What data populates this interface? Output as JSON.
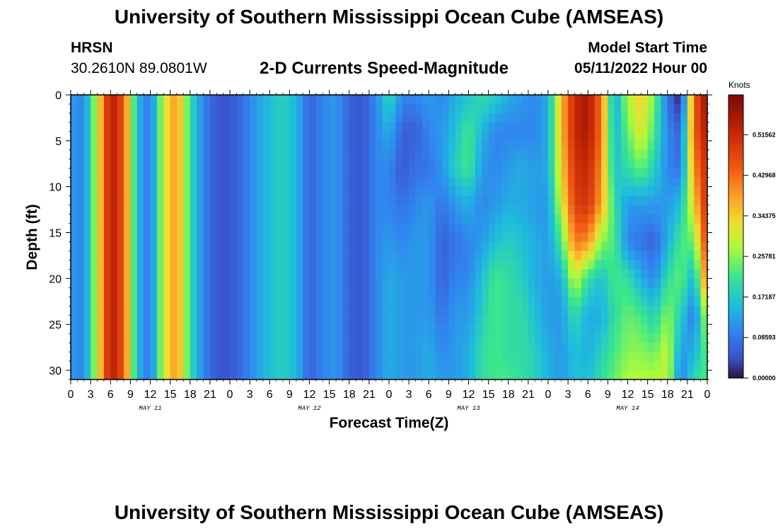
{
  "header": {
    "title": "University of Southern Mississippi Ocean Cube (AMSEAS)",
    "station": "HRSN",
    "coords": "30.2610N  89.0801W",
    "subtitle": "2-D Currents Speed-Magnitude",
    "start_label": "Model Start Time",
    "start_value": "05/11/2022 Hour 00"
  },
  "footer": {
    "title_repeat": "University of Southern Mississippi Ocean Cube (AMSEAS)"
  },
  "chart_data": {
    "type": "heatmap",
    "xlabel": "Forecast Time(Z)",
    "ylabel": "Depth (ft)",
    "units": "Knots",
    "x_hours_range": [
      0,
      96
    ],
    "x_tick_labels": [
      "0",
      "3",
      "6",
      "9",
      "12",
      "15",
      "18",
      "21",
      "0",
      "3",
      "6",
      "9",
      "12",
      "15",
      "18",
      "21",
      "0",
      "3",
      "6",
      "9",
      "12",
      "15",
      "18",
      "21",
      "0",
      "3",
      "6",
      "9",
      "12",
      "15",
      "18",
      "21",
      "0"
    ],
    "day_labels": [
      "MAY 11",
      "MAY 12",
      "MAY 13",
      "MAY 14"
    ],
    "y_range": [
      0,
      31
    ],
    "y_tick_labels": [
      "0",
      "5",
      "10",
      "15",
      "20",
      "25",
      "30"
    ],
    "colorbar": {
      "range": [
        0,
        0.6
      ],
      "tick_values": [
        0.0,
        0.0859,
        0.1718,
        0.2578,
        0.3437,
        0.4296,
        0.5156
      ],
      "tick_labels": [
        "0.00000",
        "0.08593",
        "0.17187",
        "0.25781",
        "0.34375",
        "0.42968",
        "0.51562"
      ]
    },
    "depth_levels_ft": [
      0,
      4,
      8,
      12,
      16,
      20,
      24,
      28,
      31
    ],
    "hours": [
      0,
      2,
      4,
      6,
      8,
      10,
      12,
      14,
      16,
      18,
      20,
      22,
      24,
      26,
      28,
      30,
      32,
      34,
      36,
      38,
      40,
      42,
      44,
      46,
      48,
      50,
      52,
      54,
      56,
      58,
      60,
      62,
      64,
      66,
      68,
      70,
      72,
      74,
      76,
      78,
      80,
      82,
      84,
      86,
      88,
      90,
      92,
      94,
      96
    ],
    "speed_knots": [
      [
        0.12,
        0.1,
        0.3,
        0.55,
        0.45,
        0.15,
        0.08,
        0.3,
        0.4,
        0.2,
        0.1,
        0.05,
        0.05,
        0.08,
        0.12,
        0.16,
        0.18,
        0.15,
        0.06,
        0.1,
        0.12,
        0.06,
        0.05,
        0.1,
        0.2,
        0.1,
        0.1,
        0.12,
        0.1,
        0.14,
        0.16,
        0.2,
        0.18,
        0.14,
        0.12,
        0.1,
        0.14,
        0.36,
        0.52,
        0.55,
        0.42,
        0.12,
        0.28,
        0.35,
        0.25,
        0.08,
        0.0,
        0.44,
        0.58
      ],
      [
        0.12,
        0.1,
        0.3,
        0.55,
        0.45,
        0.15,
        0.08,
        0.3,
        0.4,
        0.2,
        0.1,
        0.05,
        0.05,
        0.08,
        0.12,
        0.16,
        0.18,
        0.15,
        0.06,
        0.1,
        0.12,
        0.06,
        0.05,
        0.1,
        0.14,
        0.06,
        0.06,
        0.1,
        0.12,
        0.16,
        0.22,
        0.15,
        0.1,
        0.1,
        0.1,
        0.1,
        0.14,
        0.36,
        0.52,
        0.55,
        0.42,
        0.14,
        0.24,
        0.32,
        0.22,
        0.1,
        0.06,
        0.44,
        0.55
      ],
      [
        0.12,
        0.1,
        0.3,
        0.55,
        0.45,
        0.15,
        0.08,
        0.3,
        0.4,
        0.2,
        0.1,
        0.05,
        0.05,
        0.08,
        0.12,
        0.16,
        0.18,
        0.15,
        0.06,
        0.1,
        0.12,
        0.06,
        0.05,
        0.1,
        0.1,
        0.05,
        0.08,
        0.08,
        0.12,
        0.18,
        0.22,
        0.12,
        0.1,
        0.12,
        0.14,
        0.12,
        0.14,
        0.34,
        0.5,
        0.52,
        0.4,
        0.16,
        0.2,
        0.24,
        0.18,
        0.1,
        0.08,
        0.4,
        0.52
      ],
      [
        0.12,
        0.1,
        0.3,
        0.55,
        0.45,
        0.15,
        0.08,
        0.3,
        0.4,
        0.2,
        0.1,
        0.05,
        0.05,
        0.08,
        0.12,
        0.16,
        0.18,
        0.15,
        0.06,
        0.1,
        0.12,
        0.06,
        0.05,
        0.1,
        0.1,
        0.08,
        0.1,
        0.12,
        0.08,
        0.12,
        0.14,
        0.1,
        0.12,
        0.14,
        0.14,
        0.12,
        0.12,
        0.3,
        0.48,
        0.5,
        0.38,
        0.2,
        0.12,
        0.12,
        0.12,
        0.12,
        0.16,
        0.34,
        0.52
      ],
      [
        0.12,
        0.1,
        0.3,
        0.55,
        0.45,
        0.15,
        0.08,
        0.3,
        0.4,
        0.2,
        0.1,
        0.05,
        0.05,
        0.08,
        0.12,
        0.16,
        0.18,
        0.15,
        0.06,
        0.1,
        0.12,
        0.06,
        0.05,
        0.1,
        0.12,
        0.1,
        0.12,
        0.12,
        0.06,
        0.08,
        0.1,
        0.12,
        0.16,
        0.18,
        0.16,
        0.14,
        0.12,
        0.22,
        0.42,
        0.4,
        0.26,
        0.22,
        0.1,
        0.08,
        0.06,
        0.14,
        0.22,
        0.24,
        0.5
      ],
      [
        0.12,
        0.1,
        0.3,
        0.55,
        0.45,
        0.15,
        0.08,
        0.3,
        0.4,
        0.2,
        0.1,
        0.05,
        0.05,
        0.08,
        0.12,
        0.16,
        0.18,
        0.15,
        0.06,
        0.1,
        0.12,
        0.06,
        0.05,
        0.1,
        0.14,
        0.12,
        0.12,
        0.12,
        0.06,
        0.1,
        0.1,
        0.16,
        0.22,
        0.2,
        0.18,
        0.14,
        0.12,
        0.14,
        0.3,
        0.2,
        0.16,
        0.22,
        0.2,
        0.14,
        0.1,
        0.2,
        0.24,
        0.14,
        0.44
      ],
      [
        0.12,
        0.1,
        0.3,
        0.55,
        0.45,
        0.15,
        0.08,
        0.3,
        0.4,
        0.2,
        0.1,
        0.05,
        0.05,
        0.08,
        0.12,
        0.16,
        0.18,
        0.15,
        0.06,
        0.1,
        0.12,
        0.06,
        0.05,
        0.1,
        0.14,
        0.12,
        0.12,
        0.12,
        0.08,
        0.12,
        0.12,
        0.18,
        0.22,
        0.2,
        0.2,
        0.16,
        0.12,
        0.12,
        0.2,
        0.14,
        0.14,
        0.2,
        0.24,
        0.22,
        0.18,
        0.26,
        0.18,
        0.08,
        0.3
      ],
      [
        0.12,
        0.1,
        0.3,
        0.55,
        0.45,
        0.15,
        0.08,
        0.3,
        0.4,
        0.2,
        0.1,
        0.05,
        0.05,
        0.08,
        0.12,
        0.16,
        0.18,
        0.15,
        0.06,
        0.1,
        0.12,
        0.06,
        0.05,
        0.1,
        0.14,
        0.12,
        0.12,
        0.14,
        0.1,
        0.12,
        0.14,
        0.2,
        0.22,
        0.2,
        0.2,
        0.18,
        0.14,
        0.12,
        0.16,
        0.14,
        0.18,
        0.22,
        0.26,
        0.26,
        0.24,
        0.3,
        0.12,
        0.14,
        0.24
      ],
      [
        0.12,
        0.1,
        0.3,
        0.55,
        0.45,
        0.15,
        0.08,
        0.3,
        0.4,
        0.2,
        0.1,
        0.05,
        0.05,
        0.08,
        0.12,
        0.16,
        0.18,
        0.15,
        0.06,
        0.1,
        0.12,
        0.06,
        0.05,
        0.1,
        0.14,
        0.12,
        0.12,
        0.14,
        0.12,
        0.12,
        0.14,
        0.2,
        0.22,
        0.22,
        0.2,
        0.18,
        0.14,
        0.12,
        0.16,
        0.16,
        0.2,
        0.24,
        0.28,
        0.28,
        0.28,
        0.3,
        0.08,
        0.2,
        0.22
      ]
    ]
  }
}
